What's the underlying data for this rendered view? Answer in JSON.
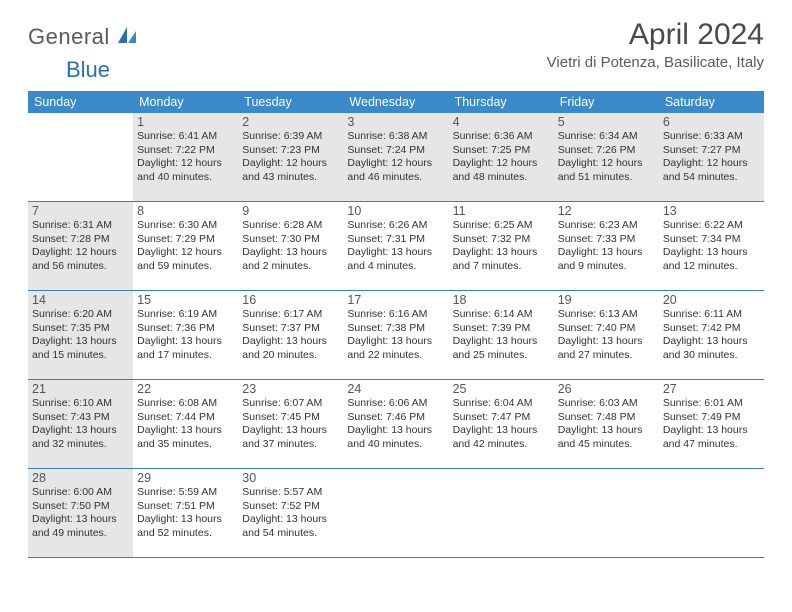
{
  "brand": {
    "part1": "General",
    "part2": "Blue"
  },
  "title": "April 2024",
  "location": "Vietri di Potenza, Basilicate, Italy",
  "colors": {
    "header_bg": "#3a8ac9",
    "border": "#3a7fb5",
    "shaded": "#e6e6e6",
    "text": "#333333",
    "title_text": "#4a4a4a",
    "brand_gray": "#5a5a5a",
    "brand_blue": "#2d6fb5"
  },
  "day_names": [
    "Sunday",
    "Monday",
    "Tuesday",
    "Wednesday",
    "Thursday",
    "Friday",
    "Saturday"
  ],
  "weeks": [
    [
      {
        "day": null
      },
      {
        "day": 1,
        "shaded": true,
        "sunrise": "6:41 AM",
        "sunset": "7:22 PM",
        "daylight": "12 hours and 40 minutes."
      },
      {
        "day": 2,
        "shaded": true,
        "sunrise": "6:39 AM",
        "sunset": "7:23 PM",
        "daylight": "12 hours and 43 minutes."
      },
      {
        "day": 3,
        "shaded": true,
        "sunrise": "6:38 AM",
        "sunset": "7:24 PM",
        "daylight": "12 hours and 46 minutes."
      },
      {
        "day": 4,
        "shaded": true,
        "sunrise": "6:36 AM",
        "sunset": "7:25 PM",
        "daylight": "12 hours and 48 minutes."
      },
      {
        "day": 5,
        "shaded": true,
        "sunrise": "6:34 AM",
        "sunset": "7:26 PM",
        "daylight": "12 hours and 51 minutes."
      },
      {
        "day": 6,
        "shaded": true,
        "sunrise": "6:33 AM",
        "sunset": "7:27 PM",
        "daylight": "12 hours and 54 minutes."
      }
    ],
    [
      {
        "day": 7,
        "shaded": true,
        "sunrise": "6:31 AM",
        "sunset": "7:28 PM",
        "daylight": "12 hours and 56 minutes."
      },
      {
        "day": 8,
        "sunrise": "6:30 AM",
        "sunset": "7:29 PM",
        "daylight": "12 hours and 59 minutes."
      },
      {
        "day": 9,
        "sunrise": "6:28 AM",
        "sunset": "7:30 PM",
        "daylight": "13 hours and 2 minutes."
      },
      {
        "day": 10,
        "sunrise": "6:26 AM",
        "sunset": "7:31 PM",
        "daylight": "13 hours and 4 minutes."
      },
      {
        "day": 11,
        "sunrise": "6:25 AM",
        "sunset": "7:32 PM",
        "daylight": "13 hours and 7 minutes."
      },
      {
        "day": 12,
        "sunrise": "6:23 AM",
        "sunset": "7:33 PM",
        "daylight": "13 hours and 9 minutes."
      },
      {
        "day": 13,
        "sunrise": "6:22 AM",
        "sunset": "7:34 PM",
        "daylight": "13 hours and 12 minutes."
      }
    ],
    [
      {
        "day": 14,
        "shaded": true,
        "sunrise": "6:20 AM",
        "sunset": "7:35 PM",
        "daylight": "13 hours and 15 minutes."
      },
      {
        "day": 15,
        "sunrise": "6:19 AM",
        "sunset": "7:36 PM",
        "daylight": "13 hours and 17 minutes."
      },
      {
        "day": 16,
        "sunrise": "6:17 AM",
        "sunset": "7:37 PM",
        "daylight": "13 hours and 20 minutes."
      },
      {
        "day": 17,
        "sunrise": "6:16 AM",
        "sunset": "7:38 PM",
        "daylight": "13 hours and 22 minutes."
      },
      {
        "day": 18,
        "sunrise": "6:14 AM",
        "sunset": "7:39 PM",
        "daylight": "13 hours and 25 minutes."
      },
      {
        "day": 19,
        "sunrise": "6:13 AM",
        "sunset": "7:40 PM",
        "daylight": "13 hours and 27 minutes."
      },
      {
        "day": 20,
        "sunrise": "6:11 AM",
        "sunset": "7:42 PM",
        "daylight": "13 hours and 30 minutes."
      }
    ],
    [
      {
        "day": 21,
        "shaded": true,
        "sunrise": "6:10 AM",
        "sunset": "7:43 PM",
        "daylight": "13 hours and 32 minutes."
      },
      {
        "day": 22,
        "sunrise": "6:08 AM",
        "sunset": "7:44 PM",
        "daylight": "13 hours and 35 minutes."
      },
      {
        "day": 23,
        "sunrise": "6:07 AM",
        "sunset": "7:45 PM",
        "daylight": "13 hours and 37 minutes."
      },
      {
        "day": 24,
        "sunrise": "6:06 AM",
        "sunset": "7:46 PM",
        "daylight": "13 hours and 40 minutes."
      },
      {
        "day": 25,
        "sunrise": "6:04 AM",
        "sunset": "7:47 PM",
        "daylight": "13 hours and 42 minutes."
      },
      {
        "day": 26,
        "sunrise": "6:03 AM",
        "sunset": "7:48 PM",
        "daylight": "13 hours and 45 minutes."
      },
      {
        "day": 27,
        "sunrise": "6:01 AM",
        "sunset": "7:49 PM",
        "daylight": "13 hours and 47 minutes."
      }
    ],
    [
      {
        "day": 28,
        "shaded": true,
        "sunrise": "6:00 AM",
        "sunset": "7:50 PM",
        "daylight": "13 hours and 49 minutes."
      },
      {
        "day": 29,
        "sunrise": "5:59 AM",
        "sunset": "7:51 PM",
        "daylight": "13 hours and 52 minutes."
      },
      {
        "day": 30,
        "sunrise": "5:57 AM",
        "sunset": "7:52 PM",
        "daylight": "13 hours and 54 minutes."
      },
      {
        "day": null
      },
      {
        "day": null
      },
      {
        "day": null
      },
      {
        "day": null
      }
    ]
  ],
  "labels": {
    "sunrise_prefix": "Sunrise: ",
    "sunset_prefix": "Sunset: ",
    "daylight_prefix": "Daylight: "
  }
}
